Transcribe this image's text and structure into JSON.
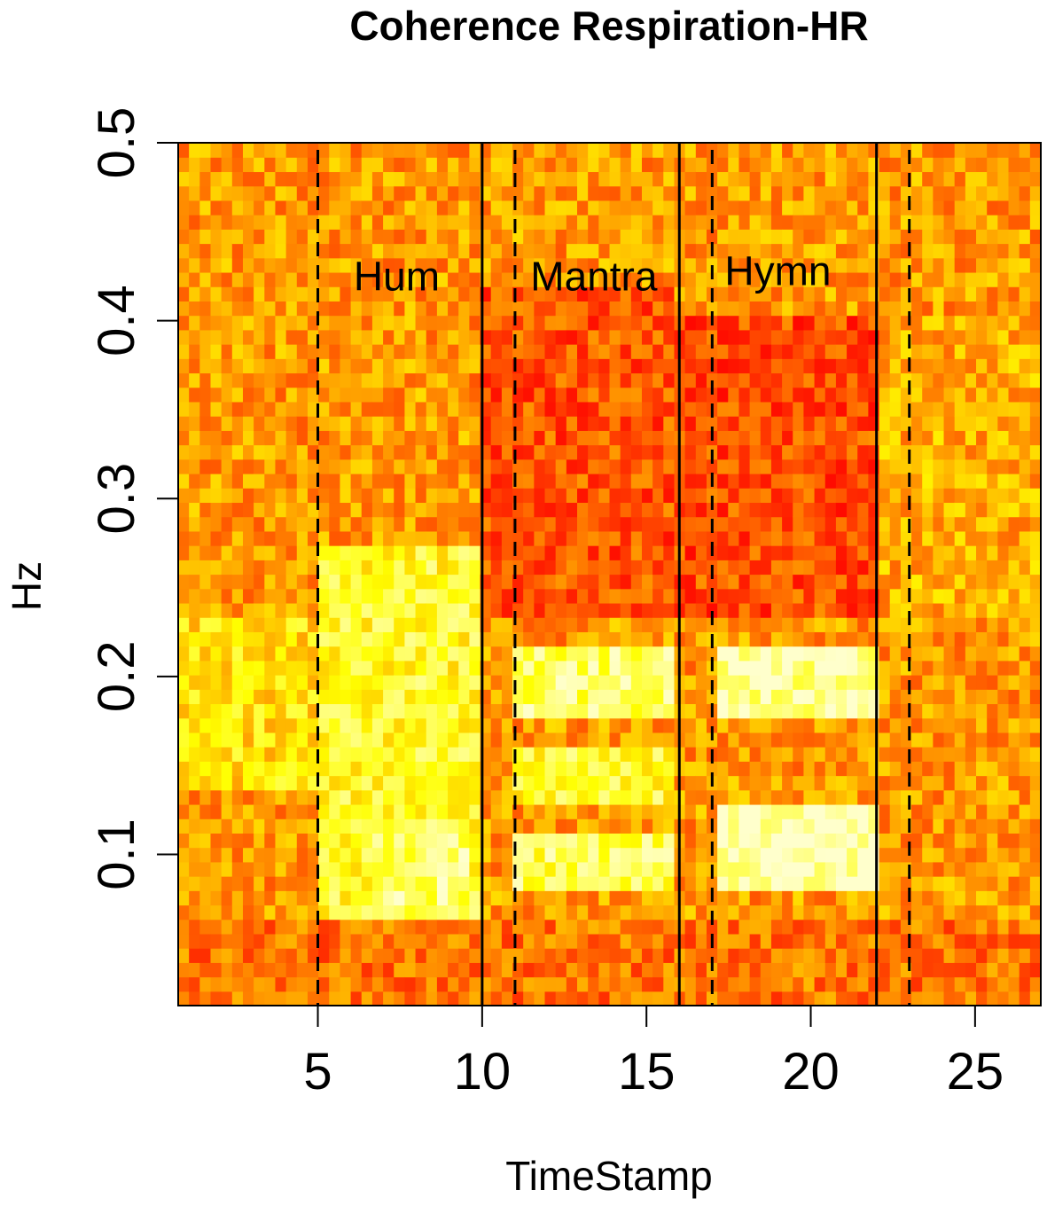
{
  "chart_data": {
    "type": "heatmap",
    "title": "Coherence Respiration-HR",
    "xlabel": "TimeStamp",
    "ylabel": "Hz",
    "xlim": [
      0.75,
      27
    ],
    "ylim": [
      0.015,
      0.5
    ],
    "x_ticks": [
      5,
      10,
      15,
      20,
      25
    ],
    "y_ticks": [
      0.1,
      0.2,
      0.3,
      0.4,
      0.5
    ],
    "colormap": [
      "#ff0000",
      "#ff8000",
      "#ffff00",
      "#ffffcc"
    ],
    "grid": false,
    "legend": "none",
    "segment_boundaries": {
      "solid": [
        10,
        16,
        22
      ],
      "dashed": [
        5,
        11,
        17,
        23
      ]
    },
    "annotations": [
      {
        "text": "Hum",
        "x": 7.4,
        "y": 0.425
      },
      {
        "text": "Mantra",
        "x": 13.4,
        "y": 0.425
      },
      {
        "text": "Hymn",
        "x": 19.0,
        "y": 0.428
      }
    ],
    "grid_resolution": {
      "time_cols": 80,
      "freq_rows": 60
    },
    "color_value_regions": [
      {
        "note": "coherence level 0 (red) to 1 (pale yellow)",
        "time": [
          0.75,
          27
        ],
        "freq": [
          0.015,
          0.5
        ],
        "value": 0.4
      },
      {
        "time": [
          0.75,
          5
        ],
        "freq": [
          0.14,
          0.23
        ],
        "value": 0.6
      },
      {
        "time": [
          5,
          10
        ],
        "freq": [
          0.06,
          0.27
        ],
        "value": 0.72
      },
      {
        "time": [
          6.5,
          9.5
        ],
        "freq": [
          0.07,
          0.12
        ],
        "value": 0.85
      },
      {
        "time": [
          10,
          16
        ],
        "freq": [
          0.23,
          0.42
        ],
        "value": 0.22
      },
      {
        "time": [
          11,
          16
        ],
        "freq": [
          0.175,
          0.215
        ],
        "value": 0.82
      },
      {
        "time": [
          11,
          16
        ],
        "freq": [
          0.13,
          0.16
        ],
        "value": 0.72
      },
      {
        "time": [
          11,
          16
        ],
        "freq": [
          0.08,
          0.115
        ],
        "value": 0.8
      },
      {
        "time": [
          16,
          22
        ],
        "freq": [
          0.23,
          0.4
        ],
        "value": 0.2
      },
      {
        "time": [
          17,
          22
        ],
        "freq": [
          0.18,
          0.22
        ],
        "value": 0.92
      },
      {
        "time": [
          17,
          22
        ],
        "freq": [
          0.08,
          0.125
        ],
        "value": 0.98
      },
      {
        "time": [
          22,
          27
        ],
        "freq": [
          0.23,
          0.4
        ],
        "value": 0.45
      },
      {
        "time": [
          0.75,
          27
        ],
        "freq": [
          0.015,
          0.06
        ],
        "value": 0.3
      }
    ]
  }
}
